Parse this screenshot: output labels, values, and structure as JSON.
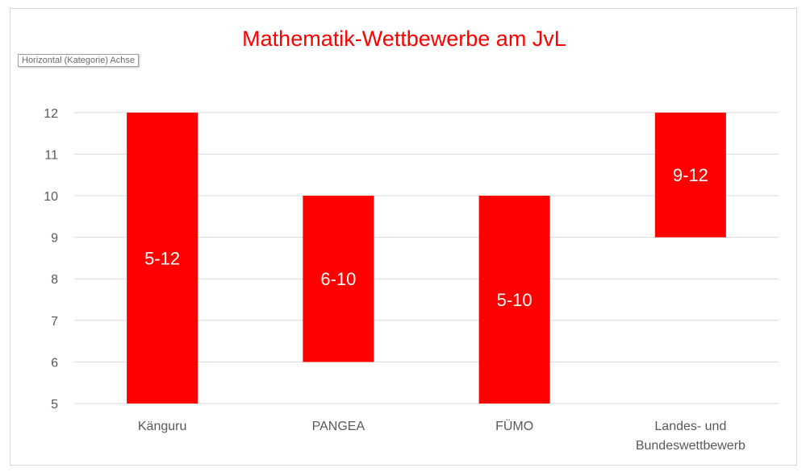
{
  "chart_data": {
    "type": "bar",
    "title": "Mathematik-Wettbewerbe am JvL",
    "categories": [
      "Känguru",
      "PANGEA",
      "FÜMO",
      "Landes- und Bundeswettbewerb"
    ],
    "ranges": [
      [
        5,
        12
      ],
      [
        6,
        10
      ],
      [
        5,
        10
      ],
      [
        9,
        12
      ]
    ],
    "data_labels": [
      "5-12",
      "6-10",
      "5-10",
      "9-12"
    ],
    "ylim": [
      5,
      12
    ],
    "yticks": [
      5,
      6,
      7,
      8,
      9,
      10,
      11,
      12
    ],
    "grid": true,
    "bar_color": "#ff0000",
    "title_color": "#ff0000"
  },
  "tooltip": {
    "text": "Horizontal (Kategorie) Achse"
  }
}
